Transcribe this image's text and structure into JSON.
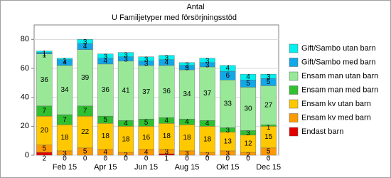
{
  "chart_data": {
    "type": "stacked-bar",
    "title": "Antal",
    "subtitle": "U Familjetyper med försörjningsstöd",
    "categories": [
      null,
      "Feb 15",
      null,
      "Apr 15",
      null,
      "Jun 15",
      null,
      "Aug 15",
      null,
      "Okt 15",
      null,
      "Dec 15"
    ],
    "series": [
      {
        "name": "Endast barn",
        "color": "#e00000",
        "values": [
          2,
          0,
          0,
          0,
          0,
          0,
          1,
          0,
          0,
          0,
          0,
          0
        ]
      },
      {
        "name": "Ensam kv med barn",
        "color": "#ff9900",
        "values": [
          5,
          3,
          5,
          4,
          2,
          4,
          3,
          3,
          2,
          3,
          2,
          5
        ]
      },
      {
        "name": "Ensam kv utan barn",
        "color": "#ffc800",
        "values": [
          20,
          18,
          22,
          18,
          18,
          16,
          18,
          18,
          18,
          13,
          12,
          15
        ]
      },
      {
        "name": "Ensam man med barn",
        "color": "#30c030",
        "values": [
          7,
          7,
          7,
          5,
          4,
          5,
          4,
          4,
          4,
          3,
          3,
          1
        ]
      },
      {
        "name": "Ensam man utan barn",
        "color": "#98e898",
        "values": [
          36,
          34,
          39,
          36,
          41,
          37,
          36,
          34,
          37,
          33,
          30,
          27
        ]
      },
      {
        "name": "Gift/Sambo med barn",
        "color": "#10a8e8",
        "values": [
          1,
          4,
          4,
          4,
          3,
          3,
          4,
          3,
          3,
          6,
          5,
          5
        ]
      },
      {
        "name": "Gift/Sambo utan barn",
        "color": "#00f0f0",
        "values": [
          1,
          1,
          3,
          3,
          3,
          3,
          3,
          2,
          3,
          4,
          4,
          3
        ]
      }
    ],
    "ylim": [
      0,
      90
    ],
    "yticks": [
      0,
      20,
      40,
      60,
      80
    ],
    "grid": true,
    "legend": "right"
  }
}
